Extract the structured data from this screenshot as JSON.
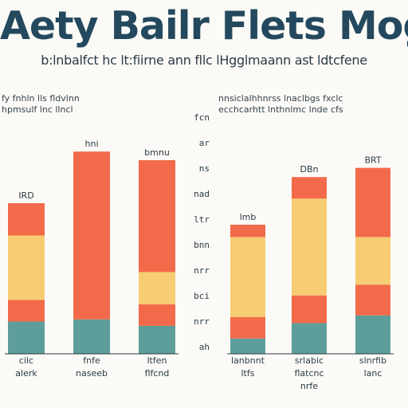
{
  "title": "Aety Bailr Flets Mogfy",
  "subtitle": "b:lnbalfct hc lt:fiirne ann fllc lHgglmaann ast ldtcfene",
  "colors": {
    "red": "#f26a4a",
    "orange": "#f4a05a",
    "yellow": "#f6cd73",
    "teal": "#5e9e9a",
    "title": "#24495e",
    "axis": "#2b3b46"
  },
  "chart_data": [
    {
      "type": "bar",
      "stacked": true,
      "notes": [
        "fy fnhln lls fldvlnn",
        "hpmsulf lnc llncl"
      ],
      "categories": [
        [
          "cilc",
          "alerk"
        ],
        [
          "fnfe",
          "naseeb"
        ],
        [
          "ltfen",
          "flfcnd"
        ]
      ],
      "top_labels": [
        "IRD",
        "hni",
        "bmnu"
      ],
      "series": [
        {
          "color": "#5e9e9a",
          "values": [
            15,
            16,
            13
          ]
        },
        {
          "color": "#f26a4a",
          "values": [
            10,
            0,
            10
          ]
        },
        {
          "color": "#f6cd73",
          "values": [
            30,
            0,
            15
          ]
        },
        {
          "color": "#f26a4a",
          "values": [
            15,
            78,
            52
          ]
        }
      ],
      "ylim": [
        0,
        100
      ]
    },
    {
      "type": "bar",
      "stacked": true,
      "notes": [
        "nnsiclalhhnrss lnaclbgs fxclc",
        "ecchcarhtt lnthnlmc lnde cfs"
      ],
      "y_ticks": [
        "fcn",
        "ar",
        "ns",
        "nad",
        "ltr",
        "bnn",
        "nrr",
        "bci",
        "nrr",
        "ah"
      ],
      "categories": [
        [
          "lanbnnt",
          "ltfs"
        ],
        [
          "srlabic",
          "flatcnc",
          "nrfe"
        ],
        [
          "slnrfib",
          "lanc"
        ]
      ],
      "top_labels": [
        "lmb",
        "DBn",
        "BRT"
      ],
      "series": [
        {
          "color": "#5e9e9a",
          "values": [
            10,
            20,
            25
          ]
        },
        {
          "color": "#f26a4a",
          "values": [
            14,
            18,
            20
          ]
        },
        {
          "color": "#f6cd73",
          "values": [
            52,
            63,
            31
          ]
        },
        {
          "color": "#f26a4a",
          "values": [
            8,
            14,
            45
          ]
        }
      ],
      "ylim": [
        0,
        140
      ]
    }
  ]
}
